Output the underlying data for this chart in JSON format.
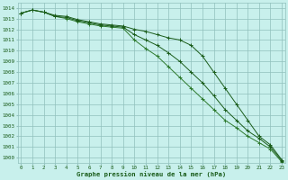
{
  "x": [
    0,
    1,
    2,
    3,
    4,
    5,
    6,
    7,
    8,
    9,
    10,
    11,
    12,
    13,
    14,
    15,
    16,
    17,
    18,
    19,
    20,
    21,
    22,
    23
  ],
  "line1": [
    1013.5,
    1013.8,
    1013.6,
    1013.2,
    1013.1,
    1012.8,
    1012.6,
    1012.4,
    1012.3,
    1012.2,
    1011.5,
    1011.0,
    1010.5,
    1009.8,
    1009.0,
    1008.0,
    1007.0,
    1005.8,
    1004.5,
    1003.5,
    1002.5,
    1001.8,
    1001.0,
    999.7
  ],
  "line2": [
    1013.5,
    1013.8,
    1013.6,
    1013.2,
    1013.0,
    1012.7,
    1012.5,
    1012.3,
    1012.2,
    1012.1,
    1011.0,
    1010.2,
    1009.5,
    1008.5,
    1007.5,
    1006.5,
    1005.5,
    1004.5,
    1003.5,
    1002.8,
    1002.0,
    1001.4,
    1000.8,
    999.6
  ],
  "line3": [
    1013.5,
    1013.8,
    1013.6,
    1013.3,
    1013.2,
    1012.9,
    1012.7,
    1012.5,
    1012.4,
    1012.3,
    1012.0,
    1011.8,
    1011.5,
    1011.2,
    1011.0,
    1010.5,
    1009.5,
    1008.0,
    1006.5,
    1005.0,
    1003.5,
    1002.0,
    1001.2,
    999.8
  ],
  "line_color1": "#1a5c1a",
  "line_color2": "#2d7a2d",
  "line_color3": "#1a5c1a",
  "bg_color": "#c8f0ec",
  "grid_color": "#90c0bc",
  "xlabel": "Graphe pression niveau de la mer (hPa)",
  "xlabel_color": "#1a5c1a",
  "tick_color": "#1a5c1a",
  "ylim": [
    999.5,
    1014.5
  ],
  "yticks": [
    1000,
    1001,
    1002,
    1003,
    1004,
    1005,
    1006,
    1007,
    1008,
    1009,
    1010,
    1011,
    1012,
    1013,
    1014
  ],
  "xticks": [
    0,
    1,
    2,
    3,
    4,
    5,
    6,
    7,
    8,
    9,
    10,
    11,
    12,
    13,
    14,
    15,
    16,
    17,
    18,
    19,
    20,
    21,
    22,
    23
  ],
  "marker": "+"
}
